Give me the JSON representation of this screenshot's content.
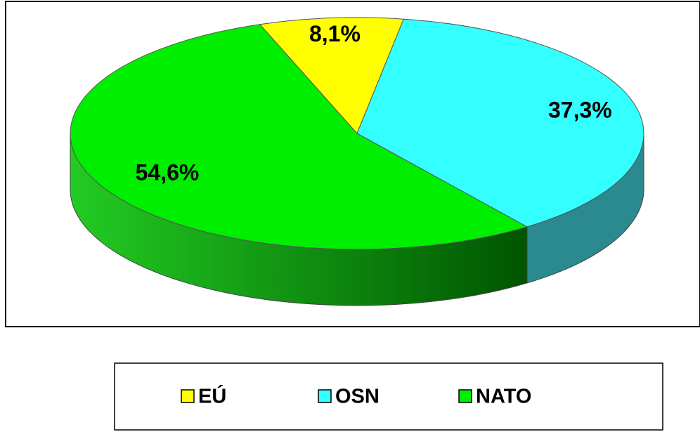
{
  "chart_data": {
    "type": "pie",
    "categories": [
      "EÚ",
      "OSN",
      "NATO"
    ],
    "values": [
      8.1,
      37.3,
      54.6
    ],
    "value_labels": [
      "8,1%",
      "37,3%",
      "54,6%"
    ],
    "colors": [
      "#ffff00",
      "#33ffff",
      "#00ee00"
    ],
    "legend": "bottom"
  }
}
